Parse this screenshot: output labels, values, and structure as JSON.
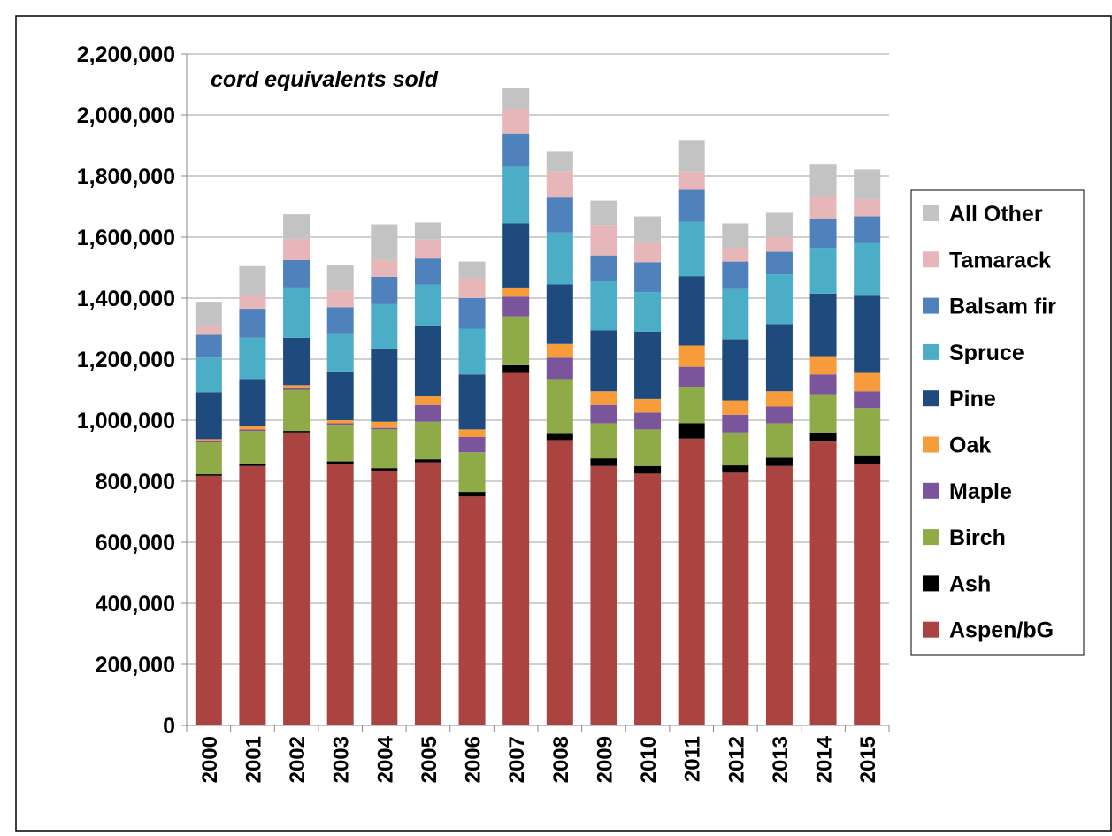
{
  "chart_data": {
    "type": "bar",
    "stacked": true,
    "annotation": "cord equivalents sold",
    "categories": [
      "2000",
      "2001",
      "2002",
      "2003",
      "2004",
      "2005",
      "2006",
      "2007",
      "2008",
      "2009",
      "2010",
      "2011",
      "2012",
      "2013",
      "2014",
      "2015"
    ],
    "series": [
      {
        "name": "Aspen/bG",
        "color": "#ab4441",
        "values": [
          818000,
          850000,
          960000,
          855000,
          835000,
          862000,
          750000,
          1155000,
          935000,
          850000,
          825000,
          940000,
          828000,
          850000,
          930000,
          855000
        ]
      },
      {
        "name": "Ash",
        "color": "#000000",
        "values": [
          5000,
          7000,
          5000,
          10000,
          8000,
          10000,
          15000,
          25000,
          20000,
          25000,
          25000,
          50000,
          24000,
          27000,
          30000,
          30000
        ]
      },
      {
        "name": "Birch",
        "color": "#8eab47",
        "values": [
          104000,
          108000,
          135000,
          120000,
          127000,
          123000,
          130000,
          160000,
          180000,
          115000,
          120000,
          120000,
          108000,
          113000,
          125000,
          155000
        ]
      },
      {
        "name": "Maple",
        "color": "#7a559b",
        "values": [
          4000,
          5000,
          5000,
          5000,
          5000,
          55000,
          50000,
          65000,
          70000,
          60000,
          55000,
          65000,
          58000,
          55000,
          65000,
          55000
        ]
      },
      {
        "name": "Oak",
        "color": "#f79b3b",
        "values": [
          7000,
          10000,
          10000,
          10000,
          20000,
          28000,
          25000,
          30000,
          45000,
          45000,
          45000,
          70000,
          47000,
          50000,
          60000,
          60000
        ]
      },
      {
        "name": "Pine",
        "color": "#1f4a7e",
        "values": [
          154000,
          155000,
          155000,
          160000,
          240000,
          230000,
          180000,
          210000,
          195000,
          200000,
          220000,
          227000,
          200000,
          220000,
          205000,
          253000
        ]
      },
      {
        "name": "Spruce",
        "color": "#4badc6",
        "values": [
          113000,
          135000,
          165000,
          125000,
          145000,
          137000,
          150000,
          185000,
          170000,
          160000,
          130000,
          178000,
          165000,
          163000,
          150000,
          172000
        ]
      },
      {
        "name": "Balsam fir",
        "color": "#4f81bd",
        "values": [
          75000,
          95000,
          90000,
          85000,
          90000,
          85000,
          100000,
          110000,
          115000,
          85000,
          98000,
          105000,
          90000,
          74000,
          95000,
          88000
        ]
      },
      {
        "name": "Tamarack",
        "color": "#e6b6b8",
        "values": [
          27000,
          45000,
          70000,
          55000,
          55000,
          62000,
          65000,
          80000,
          85000,
          100000,
          62000,
          60000,
          45000,
          48000,
          72000,
          57000
        ]
      },
      {
        "name": "All Other",
        "color": "#c3c3c3",
        "values": [
          81000,
          95000,
          80000,
          83000,
          117000,
          56000,
          55000,
          67000,
          65000,
          80000,
          88000,
          103000,
          80000,
          80000,
          108000,
          97000
        ]
      }
    ],
    "ylim": [
      0,
      2200000
    ],
    "yticks": [
      0,
      {
        "value": 200000,
        "label": "200,000"
      },
      {
        "value": 400000,
        "label": "400,000"
      },
      {
        "value": 600000,
        "label": "600,000"
      },
      {
        "value": 800000,
        "label": "800,000"
      },
      {
        "value": 1000000,
        "label": "1,000,000"
      },
      {
        "value": 1200000,
        "label": "1,200,000"
      },
      {
        "value": 1400000,
        "label": "1,400,000"
      },
      {
        "value": 1600000,
        "label": "1,600,000"
      },
      {
        "value": 1800000,
        "label": "1,800,000"
      },
      {
        "value": 2000000,
        "label": "2,000,000"
      },
      {
        "value": 2200000,
        "label": "2,200,000"
      }
    ],
    "grid": true,
    "legend": "right"
  }
}
